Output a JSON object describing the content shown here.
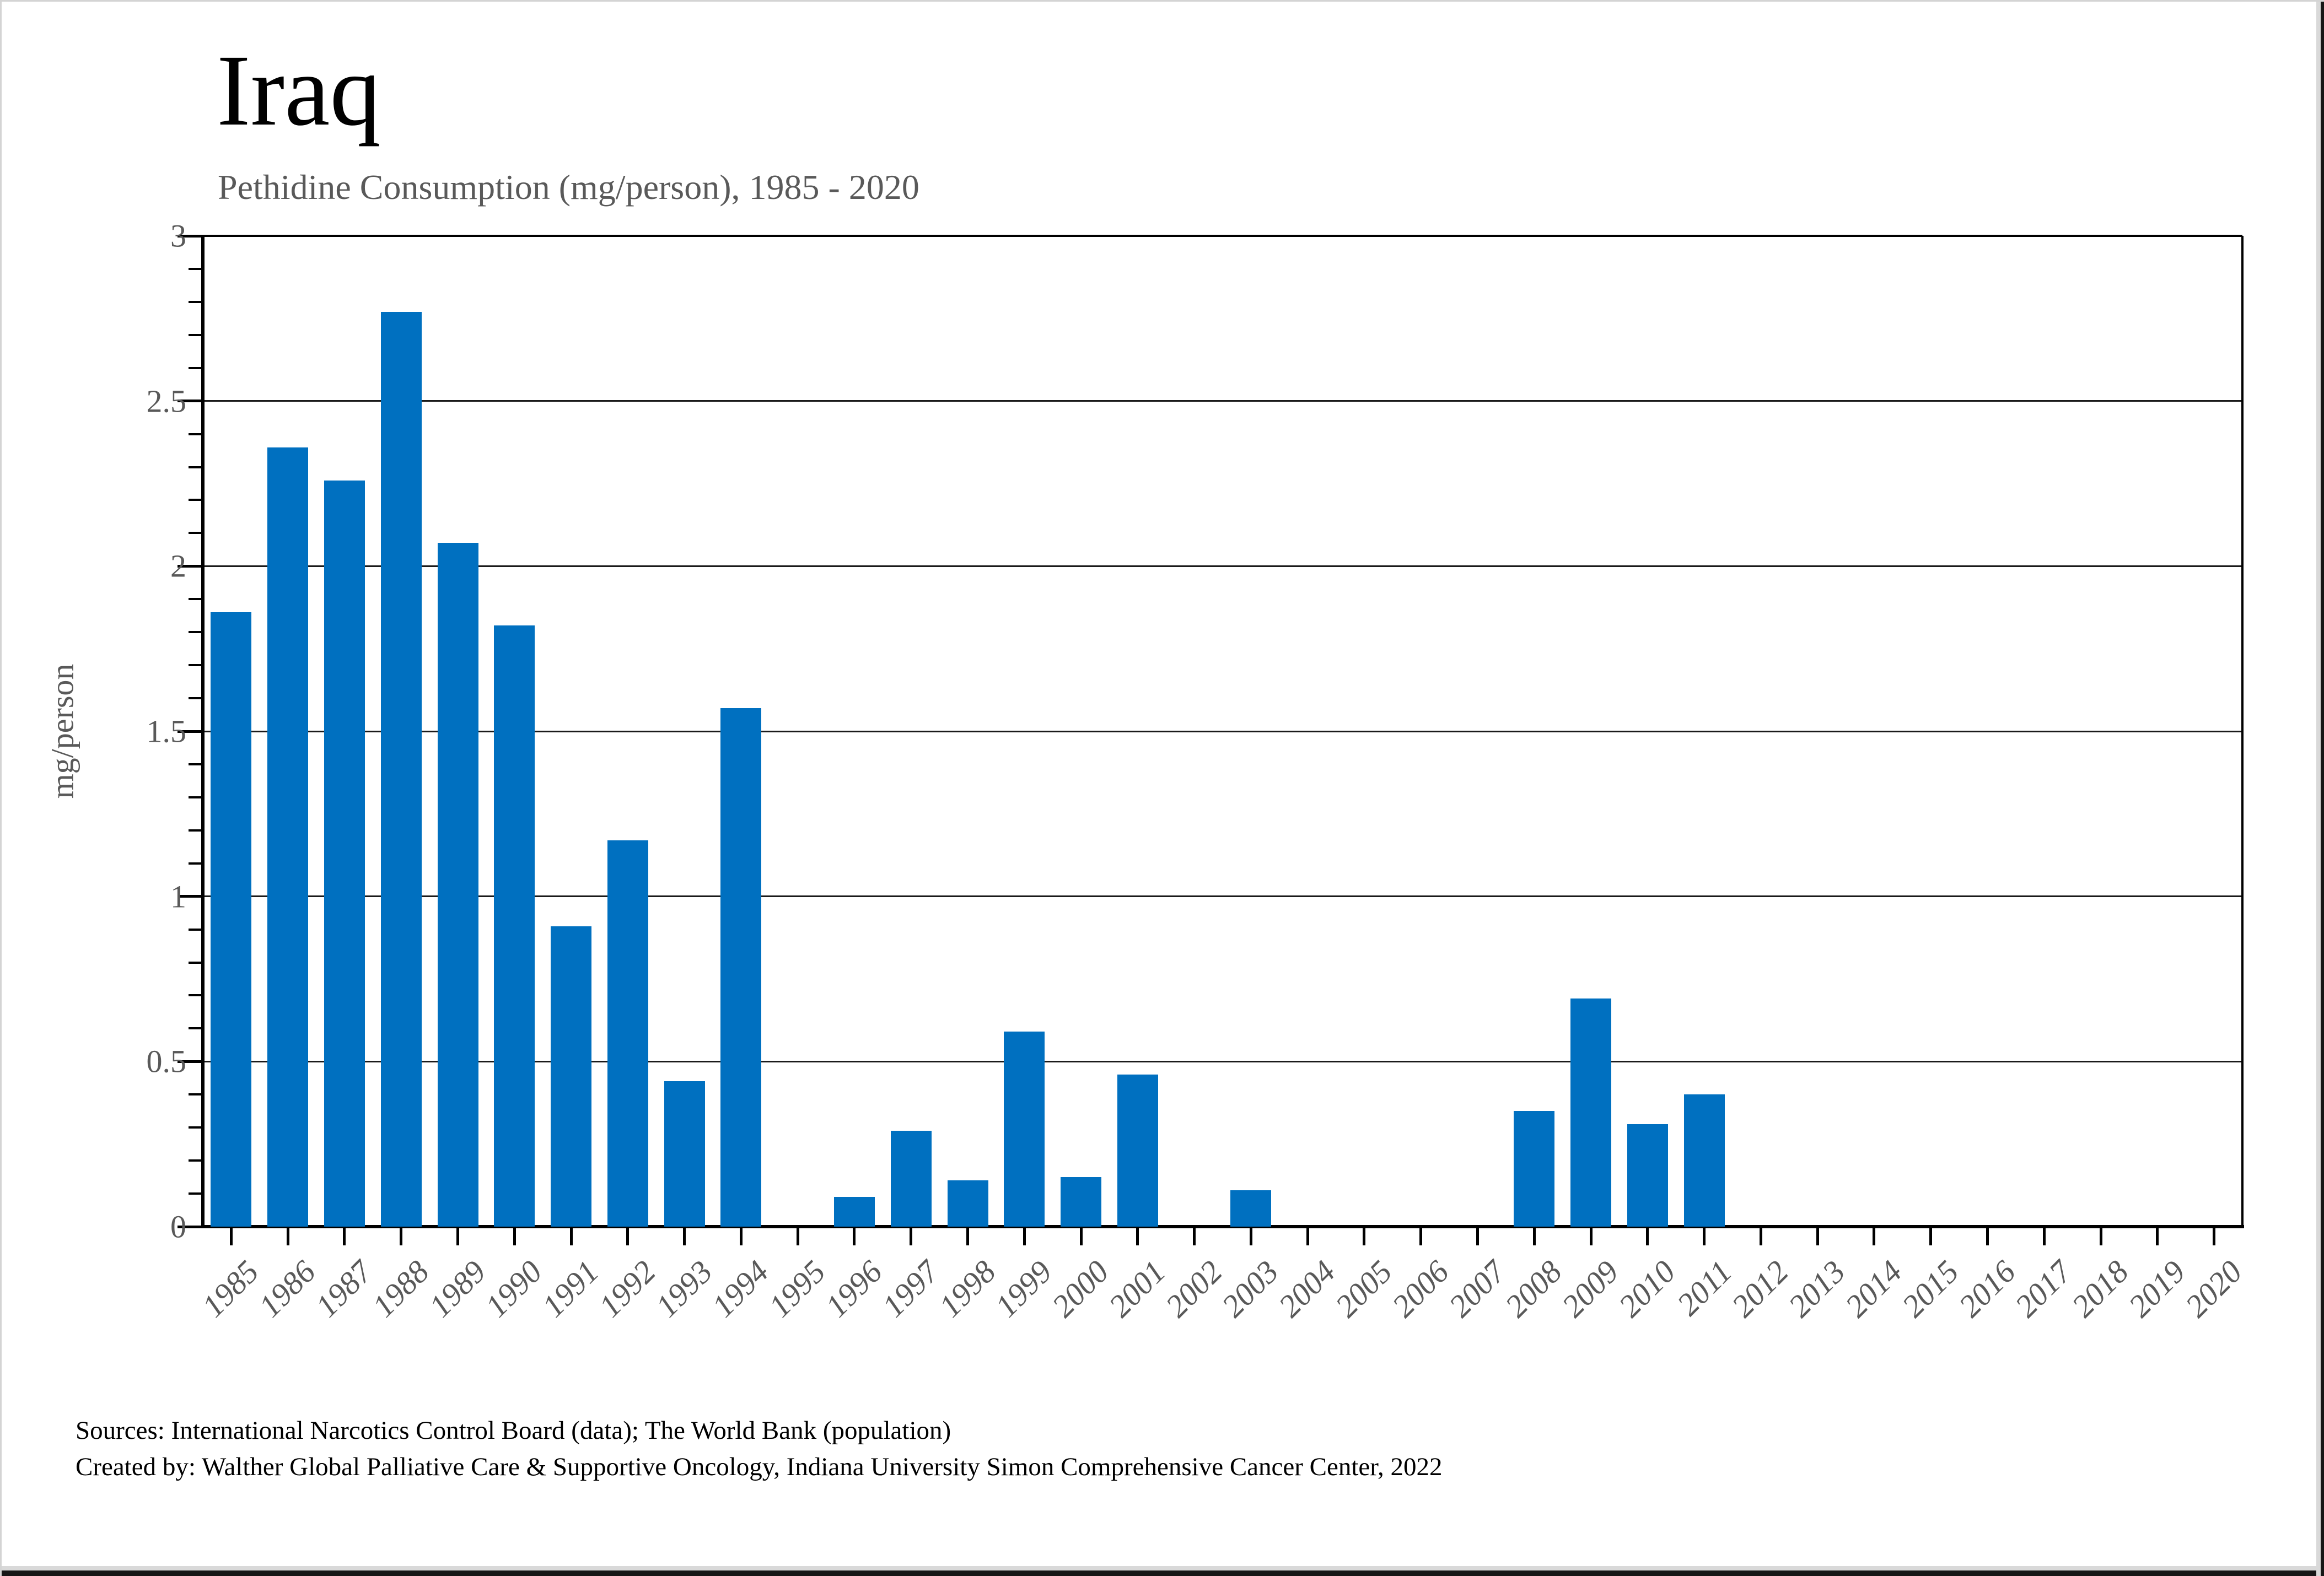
{
  "footer": {
    "line1": "Sources: International Narcotics Control Board (data); The World Bank (population)",
    "line2": "Created by: Walther Global Palliative Care & Supportive Oncology, Indiana University Simon Comprehensive Cancer Center, 2022"
  },
  "chart_data": {
    "type": "bar",
    "title": "Iraq",
    "subtitle": "Pethidine Consumption (mg/person), 1985 - 2020",
    "xlabel": "",
    "ylabel": "mg/person",
    "ylim": [
      0,
      3
    ],
    "ytick_step": 0.5,
    "yminor_step": 0.1,
    "ytick_labels": [
      "0",
      "0.5",
      "1",
      "1.5",
      "2",
      "2.5",
      "3"
    ],
    "grid": "horizontal",
    "legend": "none",
    "bar_color": "#0070C0",
    "axis_color": "#000000",
    "text_color": "#595959",
    "categories": [
      "1985",
      "1986",
      "1987",
      "1988",
      "1989",
      "1990",
      "1991",
      "1992",
      "1993",
      "1994",
      "1995",
      "1996",
      "1997",
      "1998",
      "1999",
      "2000",
      "2001",
      "2002",
      "2003",
      "2004",
      "2005",
      "2006",
      "2007",
      "2008",
      "2009",
      "2010",
      "2011",
      "2012",
      "2013",
      "2014",
      "2015",
      "2016",
      "2017",
      "2018",
      "2019",
      "2020"
    ],
    "values": [
      1.86,
      2.36,
      2.26,
      2.77,
      2.07,
      1.82,
      0.91,
      1.17,
      0.44,
      1.57,
      0,
      0.09,
      0.29,
      0.14,
      0.59,
      0.15,
      0.46,
      0,
      0.11,
      0,
      0,
      0,
      0,
      0.35,
      0.69,
      0.31,
      0.4,
      0,
      0,
      0,
      0,
      0,
      0,
      0,
      0,
      0
    ]
  }
}
